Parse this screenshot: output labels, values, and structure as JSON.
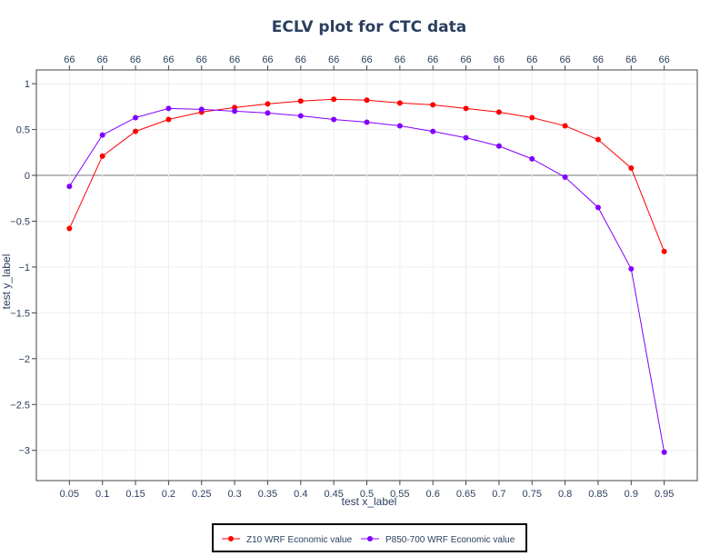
{
  "chart_data": {
    "type": "line",
    "title": "ECLV plot for CTC data",
    "xlabel": "test x_label",
    "ylabel": "test y_label",
    "x": [
      0.05,
      0.1,
      0.15,
      0.2,
      0.25,
      0.3,
      0.35,
      0.4,
      0.45,
      0.5,
      0.55,
      0.6,
      0.65,
      0.7,
      0.75,
      0.8,
      0.85,
      0.9,
      0.95
    ],
    "x_tick_labels": [
      "0.05",
      "0.1",
      "0.15",
      "0.2",
      "0.25",
      "0.3",
      "0.35",
      "0.4",
      "0.45",
      "0.5",
      "0.55",
      "0.6",
      "0.65",
      "0.7",
      "0.75",
      "0.8",
      "0.85",
      "0.9",
      "0.95"
    ],
    "top_axis_labels": [
      "66",
      "66",
      "66",
      "66",
      "66",
      "66",
      "66",
      "66",
      "66",
      "66",
      "66",
      "66",
      "66",
      "66",
      "66",
      "66",
      "66",
      "66",
      "66"
    ],
    "y_ticks": [
      1,
      0.5,
      0,
      -0.5,
      -1,
      -1.5,
      -2,
      -2.5,
      -3
    ],
    "y_tick_labels": [
      "1",
      "0.5",
      "0",
      "−0.5",
      "−1",
      "−1.5",
      "−2",
      "−2.5",
      "−3"
    ],
    "xlim": [
      0.0,
      1.0
    ],
    "ylim": [
      -3.33,
      1.15
    ],
    "grid": true,
    "legend_position": "bottom-center",
    "series": [
      {
        "name": "Z10 WRF Economic value",
        "color": "#ff0000",
        "values": [
          -0.58,
          0.21,
          0.48,
          0.61,
          0.69,
          0.74,
          0.78,
          0.81,
          0.83,
          0.82,
          0.79,
          0.77,
          0.73,
          0.69,
          0.63,
          0.54,
          0.39,
          0.08,
          -0.83
        ]
      },
      {
        "name": "P850-700 WRF Economic value",
        "color": "#8000ff",
        "values": [
          -0.12,
          0.44,
          0.63,
          0.73,
          0.72,
          0.7,
          0.68,
          0.65,
          0.61,
          0.58,
          0.54,
          0.48,
          0.41,
          0.32,
          0.18,
          -0.02,
          -0.35,
          -1.02,
          -3.02
        ]
      }
    ]
  }
}
